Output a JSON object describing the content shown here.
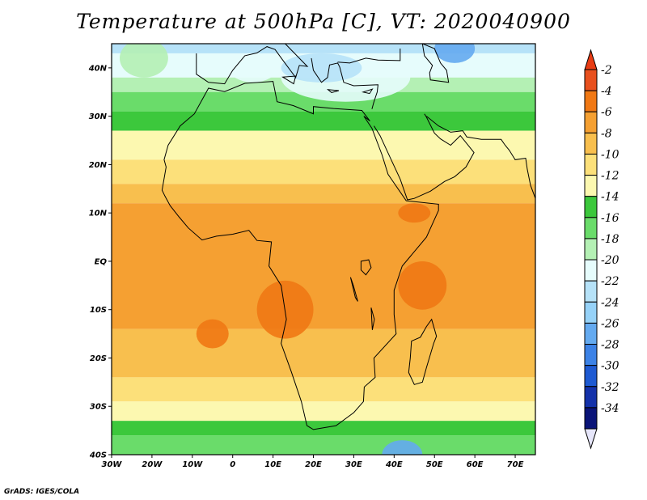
{
  "title": "Temperature at 500hPa [C], VT: 2020040900",
  "credit": "GrADS: IGES/COLA",
  "map": {
    "lon_range": [
      -30,
      75
    ],
    "lat_range": [
      -40,
      45
    ],
    "lon_ticks": [
      {
        "value": -30,
        "label": "30W"
      },
      {
        "value": -20,
        "label": "20W"
      },
      {
        "value": -10,
        "label": "10W"
      },
      {
        "value": 0,
        "label": "0"
      },
      {
        "value": 10,
        "label": "10E"
      },
      {
        "value": 20,
        "label": "20E"
      },
      {
        "value": 30,
        "label": "30E"
      },
      {
        "value": 40,
        "label": "40E"
      },
      {
        "value": 50,
        "label": "50E"
      },
      {
        "value": 60,
        "label": "60E"
      },
      {
        "value": 70,
        "label": "70E"
      }
    ],
    "lat_ticks": [
      {
        "value": 40,
        "label": "40N"
      },
      {
        "value": 30,
        "label": "30N"
      },
      {
        "value": 20,
        "label": "20N"
      },
      {
        "value": 10,
        "label": "10N"
      },
      {
        "value": 0,
        "label": "EQ"
      },
      {
        "value": -10,
        "label": "10S"
      },
      {
        "value": -20,
        "label": "20S"
      },
      {
        "value": -30,
        "label": "30S"
      },
      {
        "value": -40,
        "label": "40S"
      }
    ]
  },
  "colorbar": {
    "levels": [
      {
        "label": "-2",
        "color": "#e8501e"
      },
      {
        "label": "-4",
        "color": "#f07814"
      },
      {
        "label": "-6",
        "color": "#f5a032"
      },
      {
        "label": "-8",
        "color": "#f8bf4e"
      },
      {
        "label": "-10",
        "color": "#fce07a"
      },
      {
        "label": "-12",
        "color": "#fcf8b0"
      },
      {
        "label": "-14",
        "color": "#3cc83c"
      },
      {
        "label": "-16",
        "color": "#6adc6a"
      },
      {
        "label": "-18",
        "color": "#b4f0b4"
      },
      {
        "label": "-20",
        "color": "#e6fcfc"
      },
      {
        "label": "-22",
        "color": "#b6e2f8"
      },
      {
        "label": "-24",
        "color": "#96d2f8"
      },
      {
        "label": "-26",
        "color": "#64aaf0"
      },
      {
        "label": "-28",
        "color": "#3c82e6"
      },
      {
        "label": "-30",
        "color": "#1e5ad2"
      },
      {
        "label": "-32",
        "color": "#1432aa"
      },
      {
        "label": "-34",
        "color": "#0a1478"
      }
    ],
    "top_color": "#e83c14",
    "bottom_color": "#e6e6fa"
  }
}
